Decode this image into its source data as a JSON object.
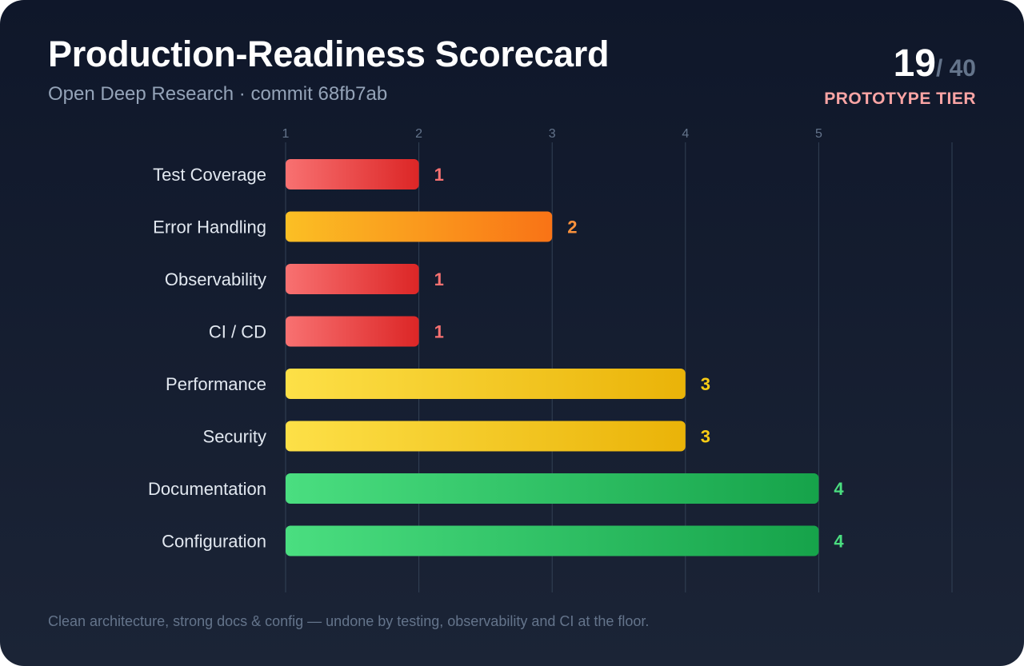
{
  "header": {
    "title": "Production-Readiness Scorecard",
    "subtitle": "Open Deep Research · commit 68fb7ab",
    "score": "19",
    "score_total": "/ 40",
    "tier": "PROTOTYPE TIER"
  },
  "colors": {
    "low": [
      "#f87171",
      "#dc2626"
    ],
    "medium": [
      "#fbbf24",
      "#f97316"
    ],
    "good": [
      "#fde047",
      "#eab308"
    ],
    "high": [
      "#4ade80",
      "#16a34a"
    ],
    "low_label": "#f87171",
    "medium_label": "#fb923c",
    "good_label": "#facc15",
    "high_label": "#4ade80"
  },
  "chart_data": {
    "type": "bar",
    "orientation": "horizontal",
    "categories": [
      "Test Coverage",
      "Error Handling",
      "Observability",
      "CI / CD",
      "Performance",
      "Security",
      "Documentation",
      "Configuration"
    ],
    "values": [
      1,
      2,
      1,
      1,
      3,
      3,
      4,
      4
    ],
    "tiers": [
      "low",
      "medium",
      "low",
      "low",
      "good",
      "good",
      "high",
      "high"
    ],
    "tick_labels": [
      "1",
      "2",
      "3",
      "4",
      "5"
    ],
    "xlim": [
      0,
      5
    ],
    "grid": true,
    "legend": "none"
  },
  "footer": "Clean architecture, strong docs & config — undone by testing, observability and CI at the floor."
}
